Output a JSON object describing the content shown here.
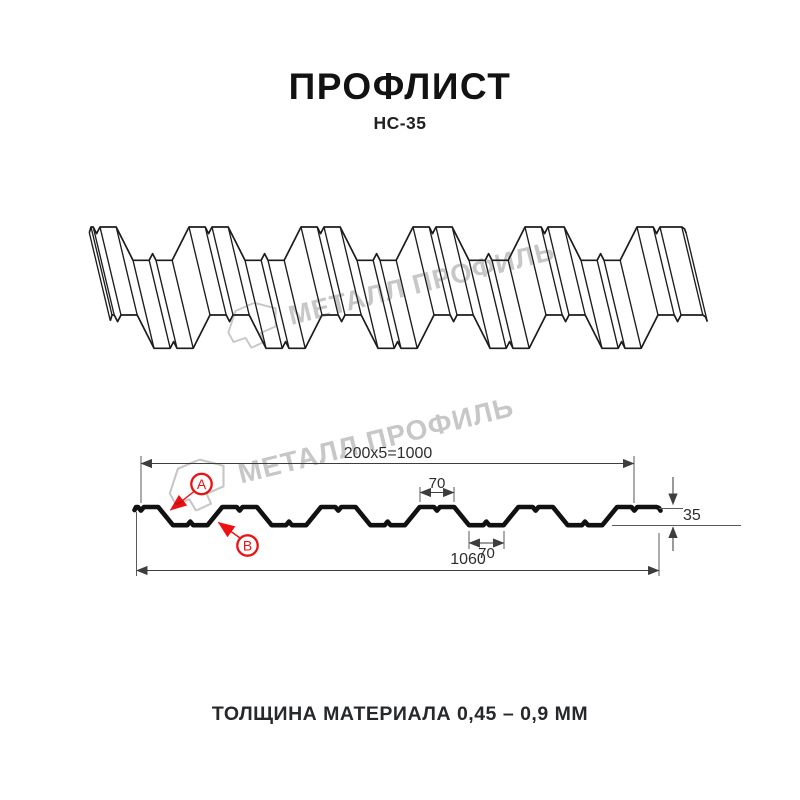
{
  "title": {
    "text": "ПРОФЛИСТ",
    "subtitle": "НС-35"
  },
  "footer": {
    "text": "ТОЛЩИНА МАТЕРИАЛА 0,45 – 0,9 ММ"
  },
  "watermark": {
    "brand": "МЕТАЛЛ ПРОФИЛЬ",
    "color": "#c7c7c7"
  },
  "section_labels": {
    "a": "A",
    "b": "B",
    "accent_color": "#ee1111"
  },
  "dimensions": {
    "pitch_formula": "200x5=1000",
    "rib_top_width": "70",
    "valley_width": "70",
    "profile_height": "35",
    "total_width": "1060"
  },
  "profile_spec": {
    "pitch_mm": 200,
    "rib_count": 5,
    "rib_top_mm": 70,
    "valley_mm": 70,
    "height_mm": 35,
    "overall_width_mm": 1060,
    "thickness_range_mm": "0,45 – 0,9"
  },
  "colors": {
    "ink": "#1c1c1c",
    "dim": "#3d3d3d"
  }
}
